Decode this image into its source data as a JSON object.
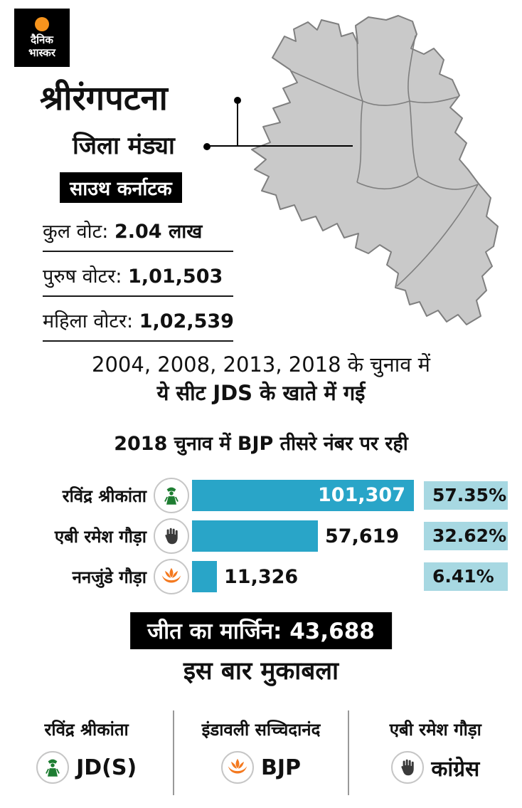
{
  "brand": {
    "line1": "दैनिक",
    "line2": "भास्कर"
  },
  "header": {
    "title": "श्रीरंगपटना",
    "district": "जिला मंड्या",
    "region": "साउथ कर्नाटक"
  },
  "stats": [
    {
      "label": "कुल वोट:",
      "value": "2.04 लाख"
    },
    {
      "label": "पुरुष वोटर:",
      "value": "1,01,503"
    },
    {
      "label": "महिला वोटर:",
      "value": "1,02,539"
    }
  ],
  "history": {
    "line1": "2004, 2008, 2013, 2018 के चुनाव में",
    "line2": "ये सीट JDS के खाते में गई"
  },
  "chart_data": {
    "type": "bar",
    "orientation": "horizontal",
    "title": "2018 चुनाव में BJP तीसरे नंबर पर रही",
    "categories": [
      "रविंद्र श्रीकांता",
      "एबी रमेश गौड़ा",
      "ननजुंडे गौड़ा"
    ],
    "values": [
      101307,
      57619,
      11326
    ],
    "value_labels": [
      "101,307",
      "57,619",
      "11,326"
    ],
    "percent_labels": [
      "57.35%",
      "32.62%",
      "6.41%"
    ],
    "parties": [
      "JDS",
      "कांग्रेस",
      "BJP"
    ],
    "xlim": [
      0,
      101307
    ],
    "bar_color": "#29A5C8",
    "badge_color": "#A7D8E2"
  },
  "result": {
    "margin": "जीत का मार्जिन: 43,688"
  },
  "contest": {
    "heading": "इस बार मुकाबला",
    "contenders": [
      {
        "name": "रविंद्र श्रीकांता",
        "party": "JD(S)",
        "icon": "jds-symbol-icon"
      },
      {
        "name": "इंडावली सच्चिदानंद",
        "party": "BJP",
        "icon": "bjp-lotus-icon"
      },
      {
        "name": "एबी रमेश गौड़ा",
        "party": "कांग्रेस",
        "icon": "congress-hand-icon"
      }
    ]
  },
  "icons": {
    "logo_sun": "sun-icon",
    "jds": "jds-symbol-icon",
    "congress": "congress-hand-icon",
    "bjp": "bjp-lotus-icon"
  },
  "colors": {
    "brand_orange": "#F7941D",
    "bar_teal": "#29A5C8",
    "badge_teal_light": "#A7D8E2",
    "map_gray": "#C9C9C9",
    "ink": "#000000"
  }
}
